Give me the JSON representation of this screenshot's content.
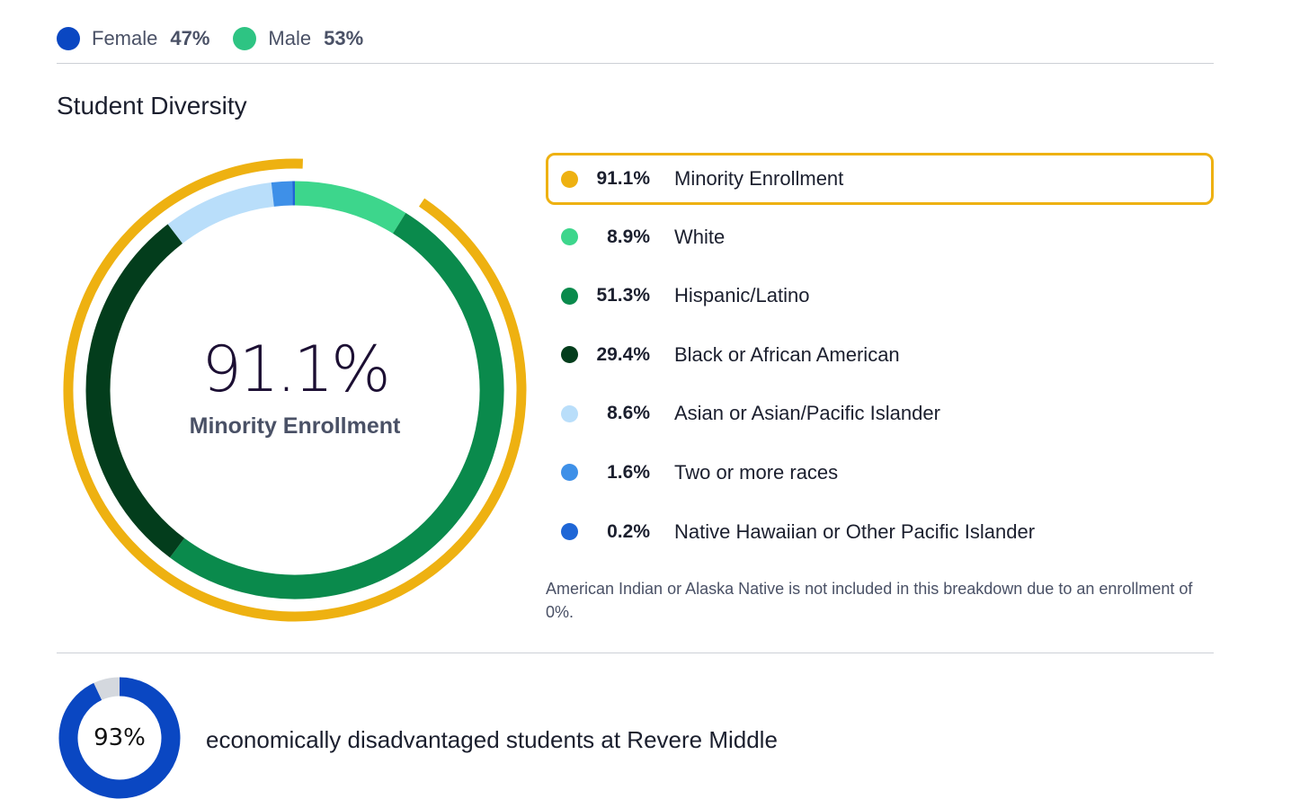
{
  "gender": [
    {
      "label": "Female",
      "pct": "47%",
      "color": "#0a47c2"
    },
    {
      "label": "Male",
      "pct": "53%",
      "color": "#2ec483"
    }
  ],
  "section_title": "Student Diversity",
  "center": {
    "value": "91.1%",
    "label": "Minority Enrollment"
  },
  "legend": [
    {
      "pct": "91.1%",
      "name": "Minority Enrollment",
      "color": "#eeb111",
      "highlight": true
    },
    {
      "pct": "8.9%",
      "name": "White",
      "color": "#3dd68c"
    },
    {
      "pct": "51.3%",
      "name": "Hispanic/Latino",
      "color": "#0a8a4c"
    },
    {
      "pct": "29.4%",
      "name": "Black or African American",
      "color": "#033d1c"
    },
    {
      "pct": "8.6%",
      "name": "Asian or Asian/Pacific Islander",
      "color": "#b9defa"
    },
    {
      "pct": "1.6%",
      "name": "Two or more races",
      "color": "#3e90e8"
    },
    {
      "pct": "0.2%",
      "name": "Native Hawaiian or Other Pacific Islander",
      "color": "#1e66d6"
    }
  ],
  "note": "American Indian or Alaska Native is not included in this breakdown due to an enrollment of 0%.",
  "econ": {
    "value": "93%",
    "text": "economically disadvantaged students at Revere Middle",
    "color": "#0a47c2",
    "rest_color": "#d4d8de"
  },
  "chart_data": [
    {
      "type": "pie",
      "title": "Student Diversity",
      "categories": [
        "White",
        "Hispanic/Latino",
        "Black or African American",
        "Asian or Asian/Pacific Islander",
        "Two or more races",
        "Native Hawaiian or Other Pacific Islander"
      ],
      "values": [
        8.9,
        51.3,
        29.4,
        8.6,
        1.6,
        0.2
      ],
      "colors": [
        "#3dd68c",
        "#0a8a4c",
        "#033d1c",
        "#b9defa",
        "#3e90e8",
        "#1e66d6"
      ],
      "highlight": {
        "name": "Minority Enrollment",
        "value": 91.1,
        "color": "#eeb111"
      },
      "legend": "right"
    },
    {
      "type": "pie",
      "values": [
        93,
        7
      ],
      "colors": [
        "#0a47c2",
        "#d4d8de"
      ]
    }
  ]
}
